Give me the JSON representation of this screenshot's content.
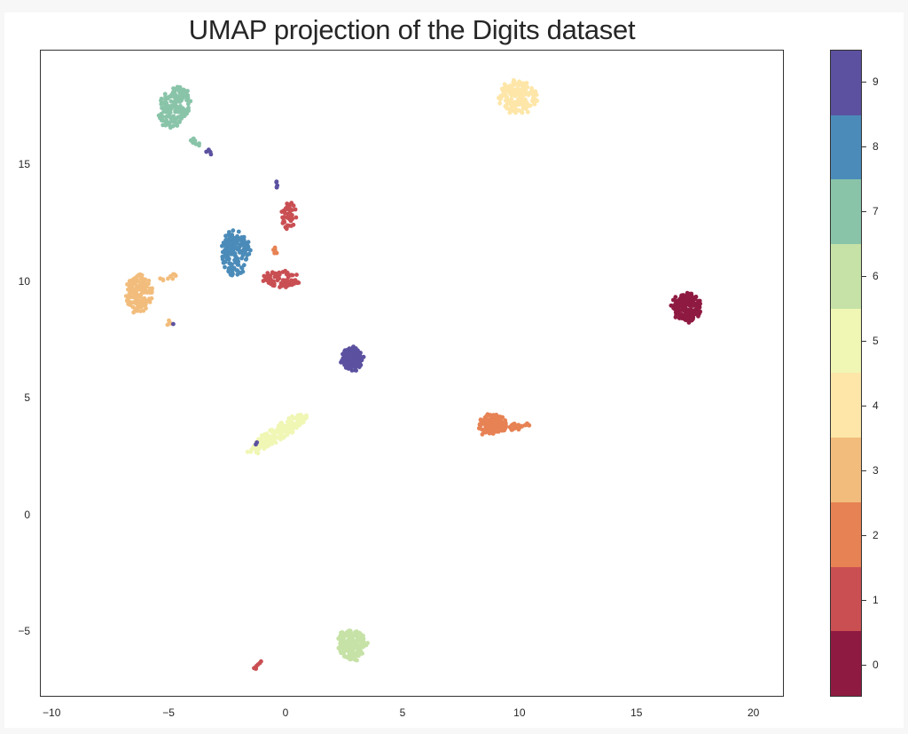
{
  "chart_data": {
    "type": "scatter",
    "title": "UMAP projection of the Digits dataset",
    "xlabel": "",
    "ylabel": "",
    "xlim": [
      -10.5,
      21.3
    ],
    "ylim": [
      -7.8,
      19.9
    ],
    "xticks": [
      -10,
      -5,
      0,
      5,
      10,
      15,
      20
    ],
    "yticks": [
      -5,
      0,
      5,
      10,
      15
    ],
    "grid": false,
    "colormap": "Spectral",
    "colorbar": {
      "ticks": [
        0,
        1,
        2,
        3,
        4,
        5,
        6,
        7,
        8,
        9
      ],
      "colors": [
        "#9e0142",
        "#d53e4f",
        "#f46d43",
        "#fdae61",
        "#fee08b",
        "#ffffbf",
        "#e6f598",
        "#abdda4",
        "#66c2a5",
        "#5e4fa2"
      ],
      "display_colors": [
        "#8f1a41",
        "#c94f53",
        "#e78254",
        "#f2bd7c",
        "#fde6a8",
        "#f0f6b4",
        "#c6e2a6",
        "#89c4a9",
        "#4b8bb9",
        "#5b51a0"
      ]
    },
    "clusters": [
      {
        "label": 0,
        "cx": 17.1,
        "cy": 8.9,
        "rx": 0.6,
        "ry": 0.6,
        "angle": 0,
        "n": 178
      },
      {
        "label": 1,
        "cx": -0.2,
        "cy": 10.1,
        "rx": 0.8,
        "ry": 0.35,
        "angle": 0,
        "n": 80
      },
      {
        "label": 1,
        "cx": 0.1,
        "cy": 12.8,
        "rx": 0.3,
        "ry": 0.6,
        "angle": 0,
        "n": 40
      },
      {
        "label": 1,
        "cx": -1.2,
        "cy": -6.4,
        "rx": 0.2,
        "ry": 0.08,
        "angle": 35,
        "n": 8
      },
      {
        "label": 2,
        "cx": 8.8,
        "cy": 3.9,
        "rx": 0.6,
        "ry": 0.45,
        "angle": 0,
        "n": 140
      },
      {
        "label": 2,
        "cx": 9.9,
        "cy": 3.8,
        "rx": 0.5,
        "ry": 0.1,
        "angle": 10,
        "n": 25
      },
      {
        "label": 2,
        "cx": -0.5,
        "cy": 11.3,
        "rx": 0.12,
        "ry": 0.12,
        "angle": 0,
        "n": 5
      },
      {
        "label": 3,
        "cx": -6.3,
        "cy": 9.5,
        "rx": 0.55,
        "ry": 0.8,
        "angle": 0,
        "n": 150
      },
      {
        "label": 3,
        "cx": -5.1,
        "cy": 10.2,
        "rx": 0.4,
        "ry": 0.1,
        "angle": 15,
        "n": 10
      },
      {
        "label": 3,
        "cx": -5.0,
        "cy": 8.3,
        "rx": 0.1,
        "ry": 0.1,
        "angle": 0,
        "n": 4
      },
      {
        "label": 4,
        "cx": 9.9,
        "cy": 17.9,
        "rx": 0.8,
        "ry": 0.7,
        "angle": 0,
        "n": 170
      },
      {
        "label": 5,
        "cx": -0.4,
        "cy": 3.5,
        "rx": 1.5,
        "ry": 0.3,
        "angle": 33,
        "n": 170
      },
      {
        "label": 6,
        "cx": 2.8,
        "cy": -5.5,
        "rx": 0.6,
        "ry": 0.65,
        "angle": 0,
        "n": 175
      },
      {
        "label": 7,
        "cx": -4.8,
        "cy": 17.5,
        "rx": 0.6,
        "ry": 0.9,
        "angle": -25,
        "n": 170
      },
      {
        "label": 7,
        "cx": -3.8,
        "cy": 15.9,
        "rx": 0.35,
        "ry": 0.1,
        "angle": -30,
        "n": 8
      },
      {
        "label": 8,
        "cx": -2.2,
        "cy": 11.2,
        "rx": 0.6,
        "ry": 1.0,
        "angle": 0,
        "n": 170
      },
      {
        "label": 9,
        "cx": 2.8,
        "cy": 6.7,
        "rx": 0.45,
        "ry": 0.5,
        "angle": 0,
        "n": 175
      },
      {
        "label": 9,
        "cx": -0.4,
        "cy": 14.2,
        "rx": 0.12,
        "ry": 0.12,
        "angle": 0,
        "n": 5
      },
      {
        "label": 9,
        "cx": -3.3,
        "cy": 15.6,
        "rx": 0.1,
        "ry": 0.06,
        "angle": 0,
        "n": 5
      },
      {
        "label": 9,
        "cx": -4.9,
        "cy": 8.2,
        "rx": 0.05,
        "ry": 0.05,
        "angle": 0,
        "n": 1
      },
      {
        "label": 9,
        "cx": -1.3,
        "cy": 3.1,
        "rx": 0.05,
        "ry": 0.05,
        "angle": 0,
        "n": 2
      }
    ]
  },
  "axes": {
    "xtick_labels": [
      "−10",
      "−5",
      "0",
      "5",
      "10",
      "15",
      "20"
    ],
    "ytick_labels": [
      "−5",
      "0",
      "5",
      "10",
      "15"
    ]
  },
  "colorbar_labels": [
    "0",
    "1",
    "2",
    "3",
    "4",
    "5",
    "6",
    "7",
    "8",
    "9"
  ]
}
